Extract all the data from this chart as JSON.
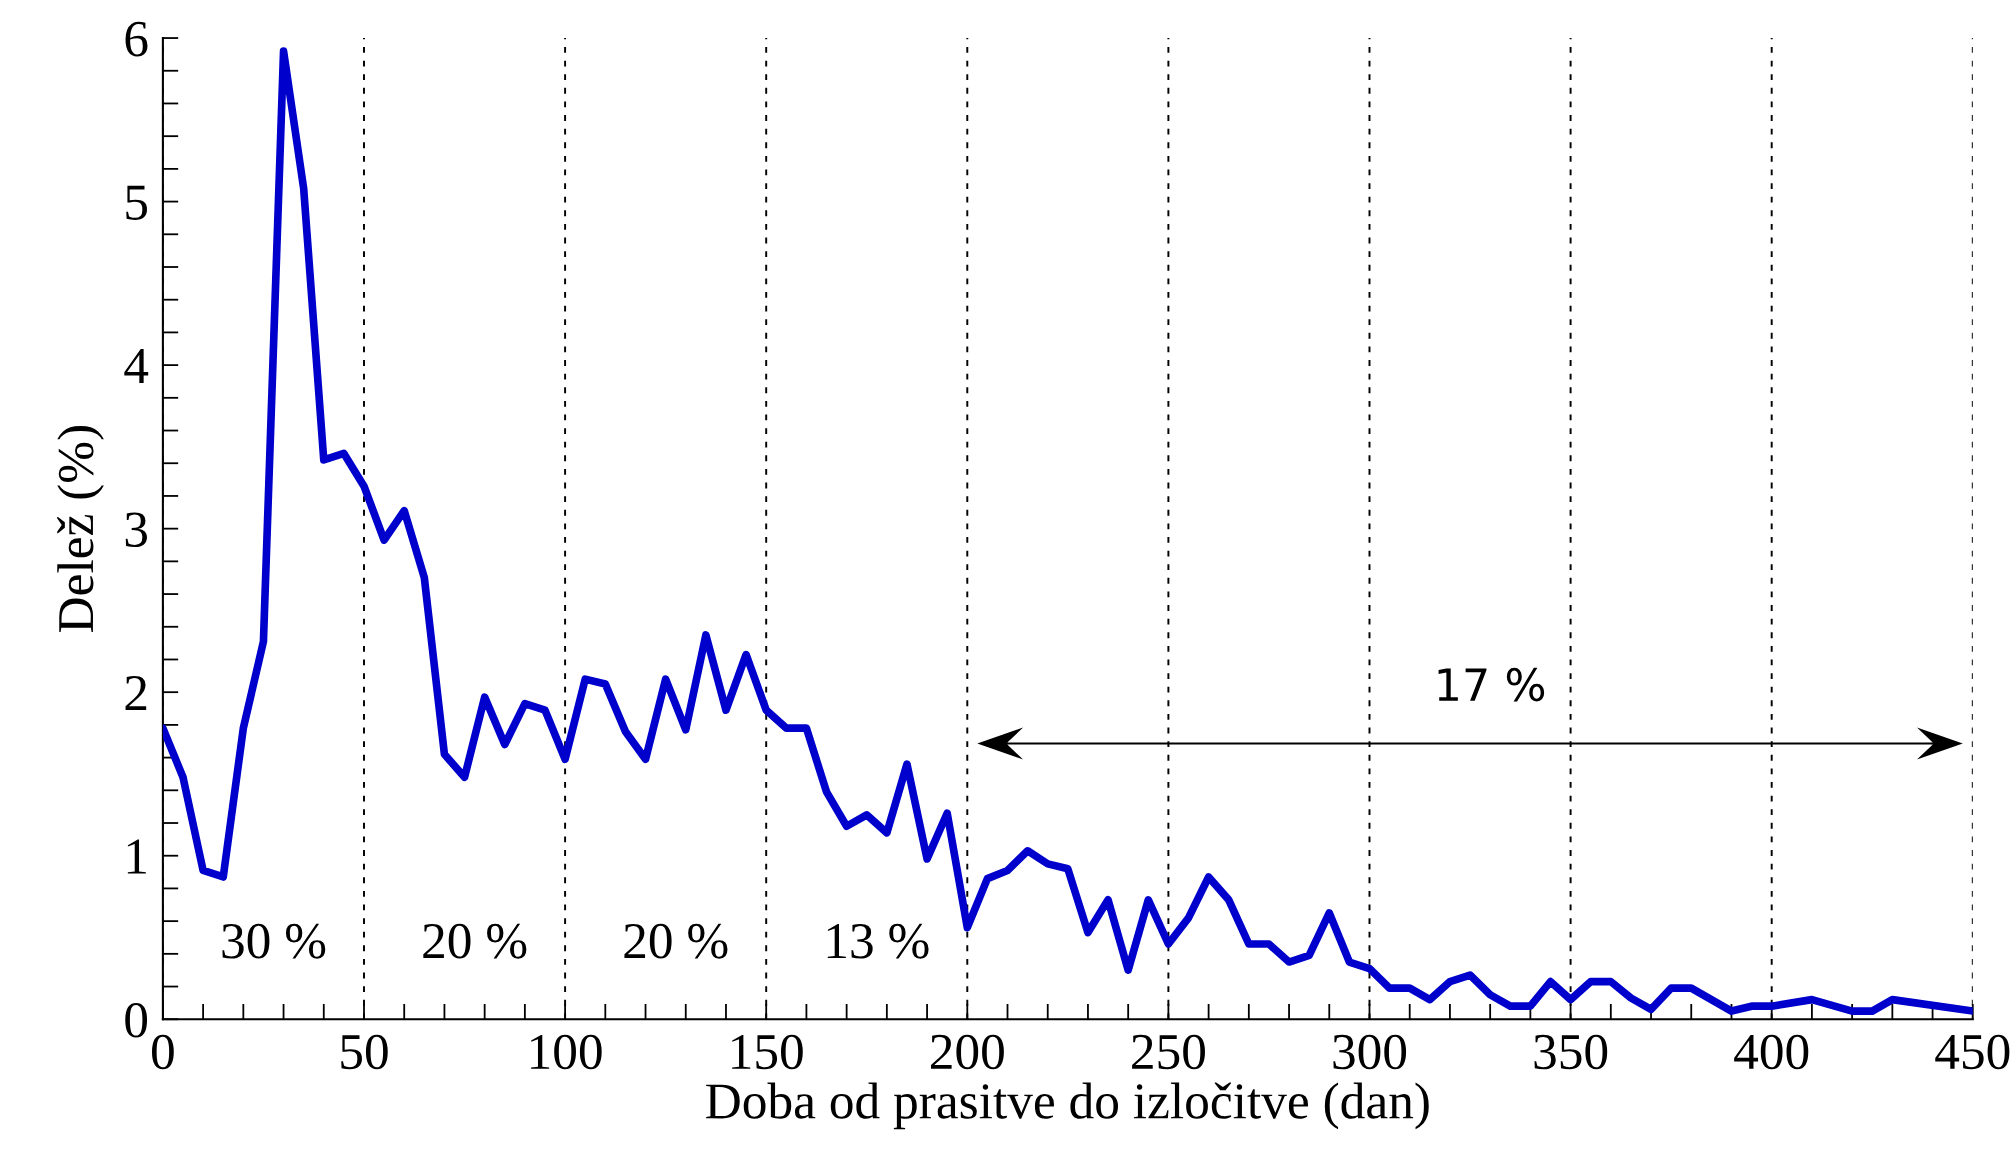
{
  "chart_data": {
    "type": "line",
    "xlabel": "Doba od prasitve do izločitve (dan)",
    "ylabel": "Delež (%)",
    "x": [
      0,
      5,
      10,
      15,
      20,
      25,
      30,
      35,
      40,
      45,
      50,
      55,
      60,
      65,
      70,
      75,
      80,
      85,
      90,
      95,
      100,
      105,
      110,
      115,
      120,
      125,
      130,
      135,
      140,
      145,
      150,
      155,
      160,
      165,
      170,
      175,
      180,
      185,
      190,
      195,
      200,
      205,
      210,
      215,
      220,
      225,
      230,
      235,
      240,
      245,
      250,
      255,
      260,
      265,
      270,
      275,
      280,
      285,
      290,
      295,
      300,
      305,
      310,
      315,
      320,
      325,
      330,
      335,
      340,
      345,
      350,
      355,
      360,
      365,
      370,
      375,
      380,
      385,
      390,
      395,
      400,
      410,
      420,
      425,
      430,
      450
    ],
    "series": [
      {
        "color": "#0000cc",
        "values": [
          1.78,
          1.48,
          0.91,
          0.87,
          1.78,
          2.31,
          5.92,
          5.08,
          3.42,
          3.46,
          3.26,
          2.93,
          3.11,
          2.7,
          1.62,
          1.48,
          1.97,
          1.68,
          1.93,
          1.89,
          1.59,
          2.08,
          2.05,
          1.76,
          1.59,
          2.08,
          1.77,
          2.35,
          1.89,
          2.23,
          1.89,
          1.78,
          1.78,
          1.39,
          1.18,
          1.25,
          1.14,
          1.56,
          0.98,
          1.26,
          0.56,
          0.86,
          0.91,
          1.03,
          0.95,
          0.92,
          0.53,
          0.73,
          0.3,
          0.73,
          0.46,
          0.62,
          0.87,
          0.73,
          0.46,
          0.46,
          0.35,
          0.39,
          0.65,
          0.35,
          0.31,
          0.19,
          0.19,
          0.12,
          0.23,
          0.27,
          0.15,
          0.08,
          0.08,
          0.23,
          0.12,
          0.23,
          0.23,
          0.13,
          0.06,
          0.19,
          0.19,
          0.12,
          0.05,
          0.08,
          0.08,
          0.12,
          0.05,
          0.05,
          0.12,
          0.05
        ]
      }
    ],
    "xlim": [
      0,
      450
    ],
    "ylim": [
      0,
      6
    ],
    "xticks": [
      0,
      50,
      100,
      150,
      200,
      250,
      300,
      350,
      400,
      450
    ],
    "yticks": [
      0,
      1,
      2,
      3,
      4,
      5,
      6
    ],
    "grid": "x",
    "line_style": "solid",
    "annotations": [
      "30 %",
      "20 %",
      "20 %",
      "13 %",
      "17 %"
    ]
  }
}
